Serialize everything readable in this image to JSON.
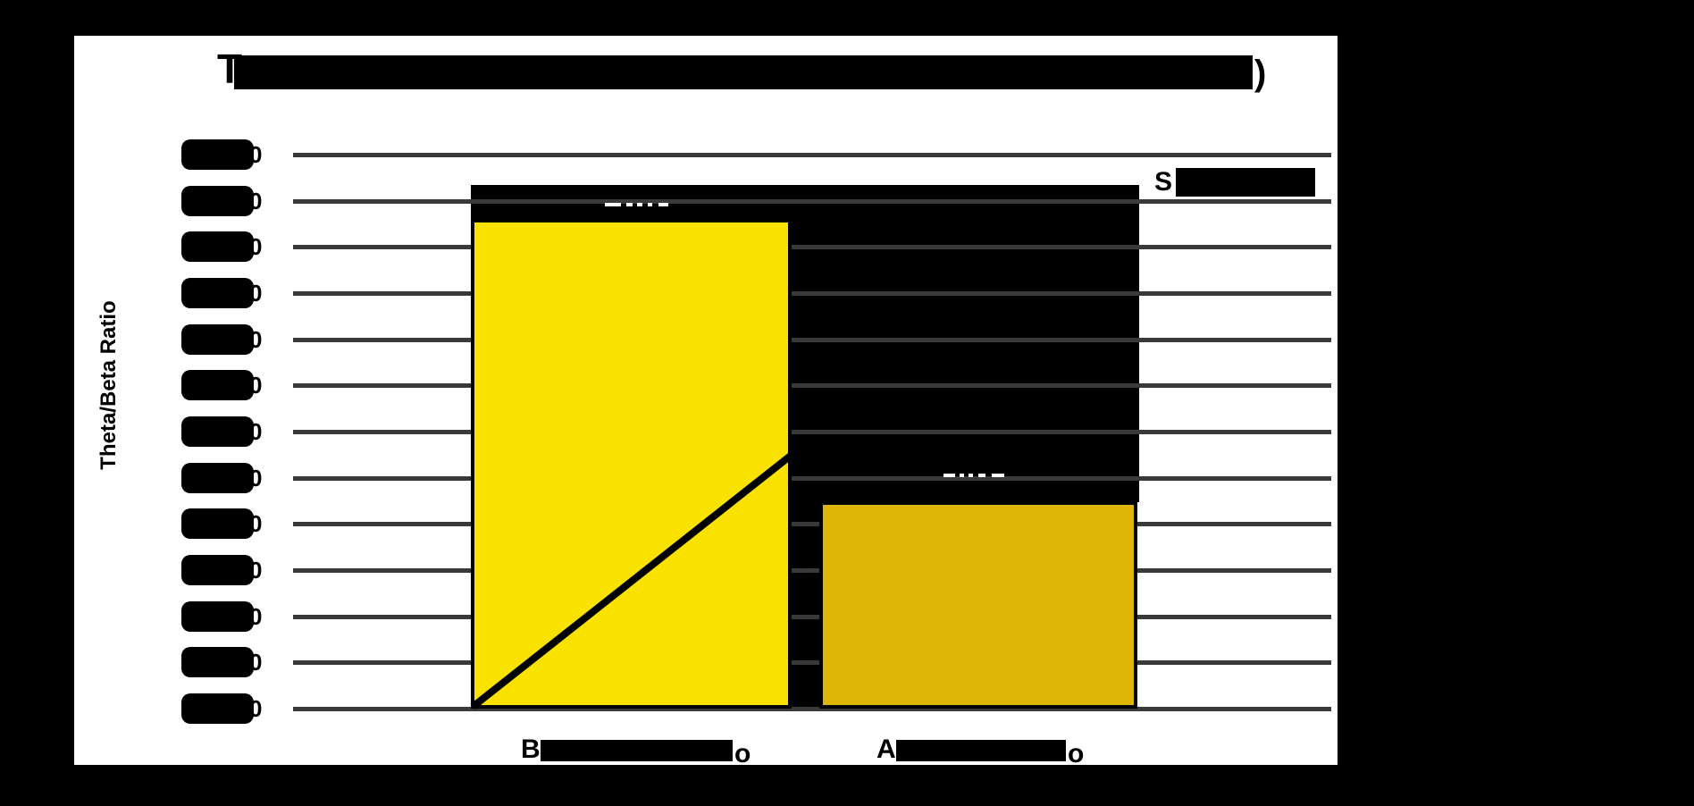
{
  "title": {
    "visible_first_char": "T",
    "visible_last_char": ")",
    "obscured": true,
    "note": "title text covered by solid black glyph box"
  },
  "legend": {
    "visible_first_char": "S",
    "obscured": true,
    "swatch_color": "#000000",
    "position": "upper right"
  },
  "y_axis": {
    "label": "Theta/Beta Ratio",
    "tick_visible_char": "0",
    "tick_count": 13,
    "ticks_obscured": true
  },
  "x_axis": {
    "labels": [
      {
        "visible_first_char": "B",
        "visible_last_char": "o",
        "obscured": true
      },
      {
        "visible_first_char": "A",
        "visible_last_char": "o",
        "obscured": true
      }
    ]
  },
  "colors": {
    "bar_before": "#F9E100",
    "bar_after": "#DEB607",
    "gridline": "#3a3a3a",
    "figure_bg": "#ffffff",
    "canvas_bg": "#000000",
    "ink": "#000000"
  },
  "chart_data": {
    "type": "bar",
    "categories": [
      "B…o (obscured)",
      "A…o (obscured)"
    ],
    "values": [
      1.06,
      0.45
    ],
    "series": [
      {
        "name": "S… (obscured legend entry)",
        "values": [
          1.06,
          0.45
        ]
      }
    ],
    "title": "T………) (obscured)",
    "xlabel": "",
    "ylabel": "Theta/Beta Ratio",
    "ylim": [
      0.0,
      1.2
    ],
    "ytick_step": 0.1,
    "grid": true,
    "legend_position": "upper right",
    "bar_colors": [
      "#F9E100",
      "#DEB607"
    ],
    "annotations": [
      "black diagonal trend line across first bar from its bottom-left corner to its upper-right edge",
      "large solid black rectangle (unrendered text) spanning between the bars and above them",
      "bar value labels obscured; faint white dash remnants visible on gridlines above each bar"
    ]
  }
}
